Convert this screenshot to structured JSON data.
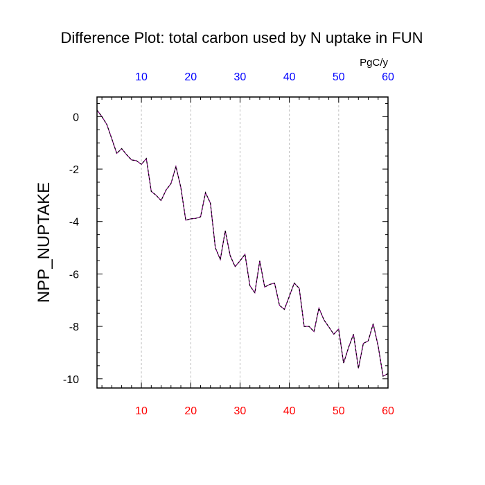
{
  "chart_data": {
    "type": "line",
    "title": "Difference Plot: total carbon used by N uptake in FUN",
    "units_label": "PgC/y",
    "ylabel": "NPP_NUPTAKE",
    "xlabel": "",
    "xlim": [
      1,
      60
    ],
    "ylim": [
      -10.35,
      0.75
    ],
    "x_ticks": [
      10,
      20,
      30,
      40,
      50,
      60
    ],
    "y_ticks": [
      0,
      -2,
      -4,
      -6,
      -8,
      -10
    ],
    "grid": "vertical-dashed",
    "colors": {
      "bottom_ticks": "#ff0000",
      "top_ticks": "#0000ff",
      "series_line": "#800080",
      "series_dash": "#000000"
    },
    "series": [
      {
        "x": [
          1,
          2,
          3,
          4,
          5,
          6,
          7,
          8,
          9,
          10,
          11,
          12,
          13,
          14,
          15,
          16,
          17,
          18,
          19,
          20,
          21,
          22,
          23,
          24,
          25,
          26,
          27,
          28,
          29,
          30,
          31,
          32,
          33,
          34,
          35,
          36,
          37,
          38,
          39,
          40,
          41,
          42,
          43,
          44,
          45,
          46,
          47,
          48,
          49,
          50,
          51,
          52,
          53,
          54,
          55,
          56,
          57,
          58,
          59,
          60
        ],
        "values": [
          0.25,
          0.0,
          -0.3,
          -0.85,
          -1.4,
          -1.22,
          -1.45,
          -1.65,
          -1.68,
          -1.82,
          -1.6,
          -2.85,
          -3.0,
          -3.2,
          -2.8,
          -2.55,
          -1.9,
          -2.7,
          -3.95,
          -3.9,
          -3.88,
          -3.82,
          -2.9,
          -3.3,
          -5.0,
          -5.45,
          -4.35,
          -5.3,
          -5.72,
          -5.5,
          -5.25,
          -6.45,
          -6.72,
          -5.5,
          -6.5,
          -6.4,
          -6.35,
          -7.2,
          -7.35,
          -6.85,
          -6.35,
          -6.55,
          -8.0,
          -8.0,
          -8.2,
          -7.3,
          -7.75,
          -8.02,
          -8.3,
          -8.1,
          -9.4,
          -8.8,
          -8.3,
          -9.6,
          -8.65,
          -8.55,
          -7.9,
          -8.75,
          -9.9,
          -9.8
        ]
      }
    ]
  }
}
